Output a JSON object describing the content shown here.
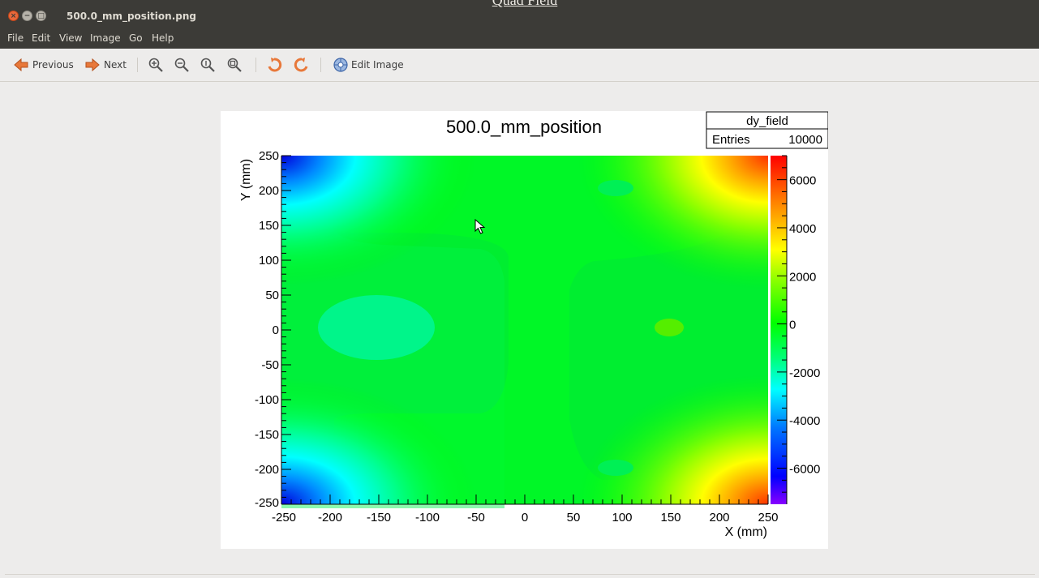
{
  "window": {
    "title": "500.0_mm_position.png",
    "behind_title": "Quad Field"
  },
  "menu": [
    "File",
    "Edit",
    "View",
    "Image",
    "Go",
    "Help"
  ],
  "toolbar": {
    "previous_label": "Previous",
    "next_label": "Next",
    "edit_image_label": "Edit Image",
    "icons": [
      "arrow-left-icon",
      "arrow-right-icon",
      "zoom-in-icon",
      "zoom-out-icon",
      "zoom-normal-icon",
      "zoom-fit-icon",
      "rotate-left-icon",
      "rotate-right-icon",
      "edit-image-icon"
    ]
  },
  "chart_data": {
    "type": "heatmap",
    "title": "500.0_mm_position",
    "xlabel": "X (mm)",
    "ylabel": "Y (mm)",
    "xlim": [
      -250,
      250
    ],
    "ylim": [
      -250,
      250
    ],
    "x_ticks": [
      "-250",
      "-200",
      "-150",
      "-100",
      "-50",
      "0",
      "50",
      "100",
      "150",
      "200",
      "250"
    ],
    "y_ticks": [
      "250",
      "200",
      "150",
      "100",
      "50",
      "0",
      "-50",
      "-100",
      "-150",
      "-200",
      "-250"
    ],
    "zlim": [
      -7500,
      7000
    ],
    "z_ticks": [
      "6000",
      "4000",
      "2000",
      "0",
      "-2000",
      "-4000",
      "-6000"
    ],
    "stats": {
      "name": "dy_field",
      "entries_label": "Entries",
      "entries": "10000"
    },
    "colors": {
      "background": "#00ff00",
      "negative_low": "#0000ff",
      "positive_high": "#ff0000"
    },
    "regions": [
      {
        "name": "top-right-corner",
        "x": 230,
        "y": 230,
        "value": 7000
      },
      {
        "name": "bottom-right-corner",
        "x": 230,
        "y": -230,
        "value": 7000
      },
      {
        "name": "top-left-corner",
        "x": -240,
        "y": 240,
        "value": -7500
      },
      {
        "name": "bottom-left-corner",
        "x": -240,
        "y": -240,
        "value": -7500
      },
      {
        "name": "left-center-blob",
        "x": -160,
        "y": 0,
        "value": -1500
      },
      {
        "name": "right-center-blob",
        "x": 150,
        "y": 0,
        "value": 700
      }
    ]
  }
}
